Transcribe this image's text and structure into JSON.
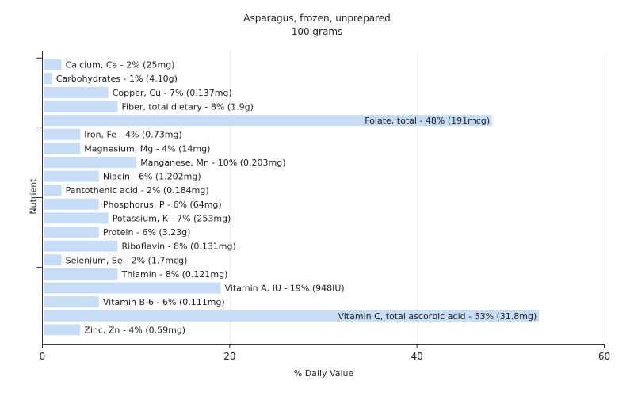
{
  "chart_data": {
    "type": "bar",
    "orientation": "horizontal",
    "title": "Asparagus, frozen, unprepared",
    "subtitle": "100 grams",
    "xlabel": "% Daily Value",
    "ylabel": "Nutrient",
    "xlim": [
      0,
      60
    ],
    "xticks": [
      0,
      20,
      40,
      60
    ],
    "grid": true,
    "bar_color": "#c6dcf7",
    "categories": [
      "Calcium, Ca",
      "Carbohydrates",
      "Copper, Cu",
      "Fiber, total dietary",
      "Folate, total",
      "Iron, Fe",
      "Magnesium, Mg",
      "Manganese, Mn",
      "Niacin",
      "Pantothenic acid",
      "Phosphorus, P",
      "Potassium, K",
      "Protein",
      "Riboflavin",
      "Selenium, Se",
      "Thiamin",
      "Vitamin A, IU",
      "Vitamin B-6",
      "Vitamin C, total ascorbic acid",
      "Zinc, Zn"
    ],
    "values": [
      2,
      1,
      7,
      8,
      48,
      4,
      4,
      10,
      6,
      2,
      6,
      7,
      6,
      8,
      2,
      8,
      19,
      6,
      53,
      4
    ],
    "labels": [
      "Calcium, Ca - 2% (25mg)",
      "Carbohydrates - 1% (4.10g)",
      "Copper, Cu - 7% (0.137mg)",
      "Fiber, total dietary - 8% (1.9g)",
      "Folate, total - 48% (191mcg)",
      "Iron, Fe - 4% (0.73mg)",
      "Magnesium, Mg - 4% (14mg)",
      "Manganese, Mn - 10% (0.203mg)",
      "Niacin - 6% (1.202mg)",
      "Pantothenic acid - 2% (0.184mg)",
      "Phosphorus, P - 6% (64mg)",
      "Potassium, K - 7% (253mg)",
      "Protein - 6% (3.23g)",
      "Riboflavin - 8% (0.131mg)",
      "Selenium, Se - 2% (1.7mcg)",
      "Thiamin - 8% (0.121mg)",
      "Vitamin A, IU - 19% (948IU)",
      "Vitamin B-6 - 6% (0.111mg)",
      "Vitamin C, total ascorbic acid - 53% (31.8mg)",
      "Zinc, Zn - 4% (0.59mg)"
    ]
  }
}
